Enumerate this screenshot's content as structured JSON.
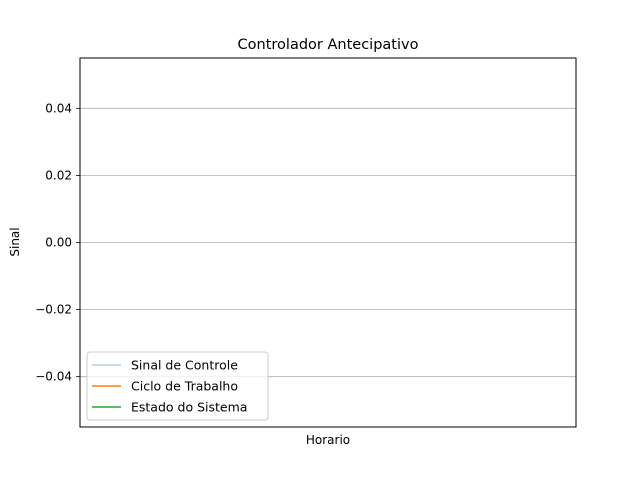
{
  "chart_data": {
    "type": "line",
    "title": "Controlador Antecipativo",
    "xlabel": "Horario",
    "ylabel": "Sinal",
    "ylim": [
      -0.055,
      0.055
    ],
    "yticks": [
      -0.04,
      -0.02,
      0.0,
      0.02,
      0.04
    ],
    "ytick_labels": [
      "−0.04",
      "−0.02",
      "0.00",
      "0.02",
      "0.04"
    ],
    "grid": "horizontal",
    "legend_position": "lower-left",
    "series": [
      {
        "name": "Sinal de Controle",
        "color": "#1f77b4",
        "values": []
      },
      {
        "name": "Ciclo de Trabalho",
        "color": "#ff7f0e",
        "values": []
      },
      {
        "name": "Estado do Sistema",
        "color": "#2ca02c",
        "values": []
      }
    ]
  }
}
